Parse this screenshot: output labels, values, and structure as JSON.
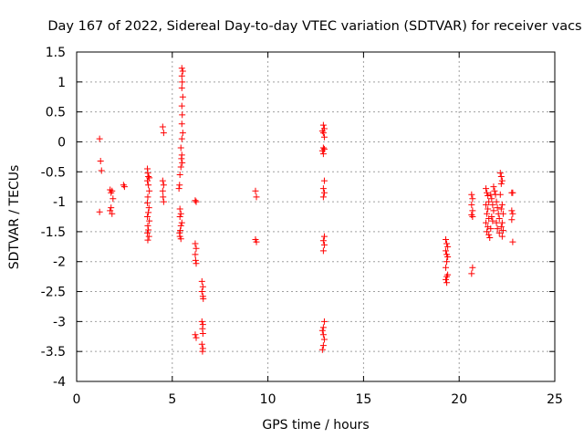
{
  "chart_data": {
    "type": "scatter",
    "title": "Day 167 of 2022, Sidereal Day-to-day VTEC variation (SDTVAR) for receiver vacs",
    "xlabel": "GPS time / hours",
    "ylabel": "SDTVAR / TECUs",
    "xlim": [
      0,
      25
    ],
    "ylim": [
      -4,
      1.5
    ],
    "xticks": [
      0,
      5,
      10,
      15,
      20,
      25
    ],
    "xtick_labels": [
      "0",
      "5",
      "10",
      "15",
      "20",
      "25"
    ],
    "yticks": [
      1.5,
      1,
      0.5,
      0,
      -0.5,
      -1,
      -1.5,
      -2,
      -2.5,
      -3,
      -3.5,
      -4
    ],
    "ytick_labels": [
      "1.5",
      "1",
      "0.5",
      "0",
      "-0.5",
      "-1",
      "-1.5",
      "-2",
      "-2.5",
      "-3",
      "-3.5",
      "-4"
    ],
    "grid": true,
    "marker": "+",
    "color": "#ff0000",
    "series": [
      {
        "name": "SDTVAR",
        "points": [
          [
            1.2,
            0.05
          ],
          [
            1.25,
            -0.32
          ],
          [
            1.3,
            -0.48
          ],
          [
            1.2,
            -1.17
          ],
          [
            1.75,
            -0.8
          ],
          [
            1.8,
            -0.85
          ],
          [
            1.85,
            -0.82
          ],
          [
            1.9,
            -0.95
          ],
          [
            1.8,
            -1.1
          ],
          [
            1.75,
            -1.15
          ],
          [
            1.85,
            -1.2
          ],
          [
            2.45,
            -0.72
          ],
          [
            2.5,
            -0.75
          ],
          [
            3.7,
            -0.45
          ],
          [
            3.72,
            -0.52
          ],
          [
            3.75,
            -0.58
          ],
          [
            3.8,
            -0.6
          ],
          [
            3.7,
            -0.65
          ],
          [
            3.75,
            -0.72
          ],
          [
            3.8,
            -0.82
          ],
          [
            3.72,
            -0.92
          ],
          [
            3.7,
            -1.02
          ],
          [
            3.78,
            -1.1
          ],
          [
            3.75,
            -1.18
          ],
          [
            3.7,
            -1.25
          ],
          [
            3.8,
            -1.32
          ],
          [
            3.72,
            -1.4
          ],
          [
            3.75,
            -1.47
          ],
          [
            3.7,
            -1.52
          ],
          [
            3.78,
            -1.58
          ],
          [
            3.72,
            -1.64
          ],
          [
            4.5,
            0.25
          ],
          [
            4.55,
            0.15
          ],
          [
            4.5,
            -0.65
          ],
          [
            4.55,
            -0.72
          ],
          [
            4.5,
            -0.82
          ],
          [
            4.52,
            -0.92
          ],
          [
            4.55,
            -1.0
          ],
          [
            5.5,
            1.23
          ],
          [
            5.55,
            1.18
          ],
          [
            5.5,
            1.1
          ],
          [
            5.52,
            1.0
          ],
          [
            5.5,
            0.9
          ],
          [
            5.55,
            0.75
          ],
          [
            5.5,
            0.6
          ],
          [
            5.52,
            0.45
          ],
          [
            5.5,
            0.3
          ],
          [
            5.55,
            0.15
          ],
          [
            5.5,
            0.05
          ],
          [
            5.45,
            -0.1
          ],
          [
            5.5,
            -0.22
          ],
          [
            5.48,
            -0.28
          ],
          [
            5.52,
            -0.35
          ],
          [
            5.45,
            -0.42
          ],
          [
            5.4,
            -0.55
          ],
          [
            5.38,
            -0.72
          ],
          [
            5.35,
            -0.78
          ],
          [
            5.4,
            -1.12
          ],
          [
            5.45,
            -1.2
          ],
          [
            5.4,
            -1.25
          ],
          [
            5.5,
            -1.35
          ],
          [
            5.45,
            -1.4
          ],
          [
            5.42,
            -1.48
          ],
          [
            5.38,
            -1.52
          ],
          [
            5.4,
            -1.58
          ],
          [
            5.45,
            -1.62
          ],
          [
            6.2,
            -0.98
          ],
          [
            6.25,
            -1.0
          ],
          [
            6.2,
            -1.7
          ],
          [
            6.25,
            -1.78
          ],
          [
            6.2,
            -1.88
          ],
          [
            6.22,
            -1.98
          ],
          [
            6.25,
            -2.03
          ],
          [
            6.55,
            -2.33
          ],
          [
            6.6,
            -2.42
          ],
          [
            6.55,
            -2.5
          ],
          [
            6.6,
            -2.58
          ],
          [
            6.62,
            -2.62
          ],
          [
            6.55,
            -3.0
          ],
          [
            6.6,
            -3.05
          ],
          [
            6.58,
            -3.12
          ],
          [
            6.6,
            -3.2
          ],
          [
            6.2,
            -3.22
          ],
          [
            6.25,
            -3.27
          ],
          [
            6.55,
            -3.38
          ],
          [
            6.6,
            -3.45
          ],
          [
            6.58,
            -3.5
          ],
          [
            9.35,
            -0.82
          ],
          [
            9.4,
            -0.92
          ],
          [
            9.35,
            -1.63
          ],
          [
            9.4,
            -1.67
          ],
          [
            12.9,
            0.28
          ],
          [
            12.95,
            0.22
          ],
          [
            12.85,
            0.18
          ],
          [
            12.9,
            0.15
          ],
          [
            12.95,
            0.08
          ],
          [
            12.9,
            -0.1
          ],
          [
            12.95,
            -0.12
          ],
          [
            12.85,
            -0.15
          ],
          [
            12.9,
            -0.2
          ],
          [
            12.95,
            -0.65
          ],
          [
            12.9,
            -0.78
          ],
          [
            12.95,
            -0.85
          ],
          [
            12.9,
            -0.92
          ],
          [
            12.95,
            -1.58
          ],
          [
            12.9,
            -1.65
          ],
          [
            12.95,
            -1.72
          ],
          [
            12.9,
            -1.82
          ],
          [
            12.95,
            -3.0
          ],
          [
            12.9,
            -3.1
          ],
          [
            12.85,
            -3.15
          ],
          [
            12.9,
            -3.22
          ],
          [
            12.95,
            -3.3
          ],
          [
            12.9,
            -3.4
          ],
          [
            12.85,
            -3.47
          ],
          [
            19.3,
            -1.63
          ],
          [
            19.35,
            -1.7
          ],
          [
            19.4,
            -1.75
          ],
          [
            19.3,
            -1.82
          ],
          [
            19.35,
            -1.88
          ],
          [
            19.4,
            -1.92
          ],
          [
            19.35,
            -2.0
          ],
          [
            19.3,
            -2.1
          ],
          [
            19.4,
            -2.22
          ],
          [
            19.35,
            -2.25
          ],
          [
            19.3,
            -2.3
          ],
          [
            19.35,
            -2.35
          ],
          [
            20.65,
            -0.88
          ],
          [
            20.7,
            -0.95
          ],
          [
            20.65,
            -1.05
          ],
          [
            20.7,
            -1.15
          ],
          [
            20.65,
            -1.22
          ],
          [
            20.7,
            -1.25
          ],
          [
            20.7,
            -2.1
          ],
          [
            20.65,
            -2.2
          ],
          [
            21.4,
            -0.78
          ],
          [
            21.45,
            -0.85
          ],
          [
            21.5,
            -0.9
          ],
          [
            21.55,
            -1.0
          ],
          [
            21.4,
            -1.05
          ],
          [
            21.5,
            -1.12
          ],
          [
            21.45,
            -1.2
          ],
          [
            21.55,
            -1.28
          ],
          [
            21.4,
            -1.35
          ],
          [
            21.5,
            -1.42
          ],
          [
            21.45,
            -1.5
          ],
          [
            21.55,
            -1.55
          ],
          [
            21.6,
            -1.6
          ],
          [
            21.65,
            -0.88
          ],
          [
            21.7,
            -0.95
          ],
          [
            21.75,
            -1.05
          ],
          [
            21.8,
            -1.15
          ],
          [
            21.7,
            -1.25
          ],
          [
            21.75,
            -1.32
          ],
          [
            21.65,
            -1.45
          ],
          [
            21.8,
            -0.75
          ],
          [
            21.85,
            -0.82
          ],
          [
            21.9,
            -0.88
          ],
          [
            21.95,
            -1.0
          ],
          [
            22.0,
            -1.1
          ],
          [
            22.05,
            -1.2
          ],
          [
            22.1,
            -1.28
          ],
          [
            21.95,
            -1.35
          ],
          [
            22.0,
            -1.45
          ],
          [
            22.1,
            -1.52
          ],
          [
            22.15,
            -0.52
          ],
          [
            22.2,
            -0.58
          ],
          [
            22.25,
            -0.65
          ],
          [
            22.2,
            -0.7
          ],
          [
            22.15,
            -0.88
          ],
          [
            22.25,
            -1.05
          ],
          [
            22.2,
            -1.12
          ],
          [
            22.3,
            -1.2
          ],
          [
            22.25,
            -1.35
          ],
          [
            22.2,
            -1.42
          ],
          [
            22.3,
            -1.48
          ],
          [
            22.25,
            -1.58
          ],
          [
            22.75,
            -0.85
          ],
          [
            22.8,
            -0.85
          ],
          [
            22.75,
            -1.15
          ],
          [
            22.8,
            -1.2
          ],
          [
            22.75,
            -1.3
          ],
          [
            22.8,
            -1.67
          ]
        ]
      }
    ]
  }
}
